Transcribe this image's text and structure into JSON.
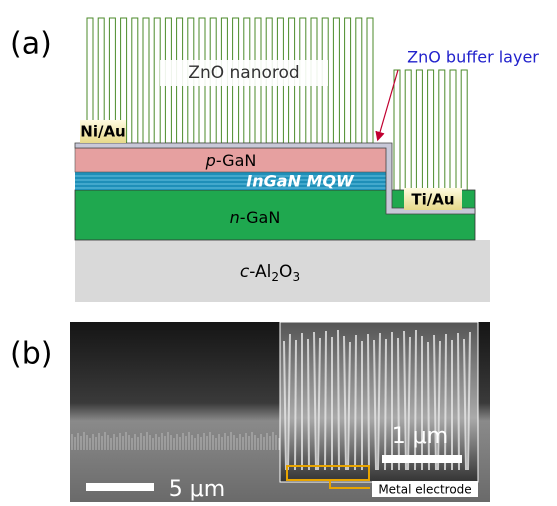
{
  "panel_a": {
    "label": "(a)",
    "nanorod": "ZnO nanorod",
    "buffer_layer": "ZnO buffer layer",
    "contact_p": "Ni/Au",
    "contact_n": "Ti/Au",
    "p_layer": {
      "parts": [
        "p",
        "-GaN"
      ]
    },
    "mqw": "InGaN MQW",
    "n_layer": {
      "parts": [
        "n",
        "-GaN"
      ]
    },
    "substrate": {
      "parts": [
        "c",
        "-Al",
        "2",
        "O",
        "3"
      ]
    }
  },
  "panel_b": {
    "label": "(b)",
    "scale_main": "5 μm",
    "scale_inset": "1 μm",
    "annotation": "Metal electrode"
  }
}
